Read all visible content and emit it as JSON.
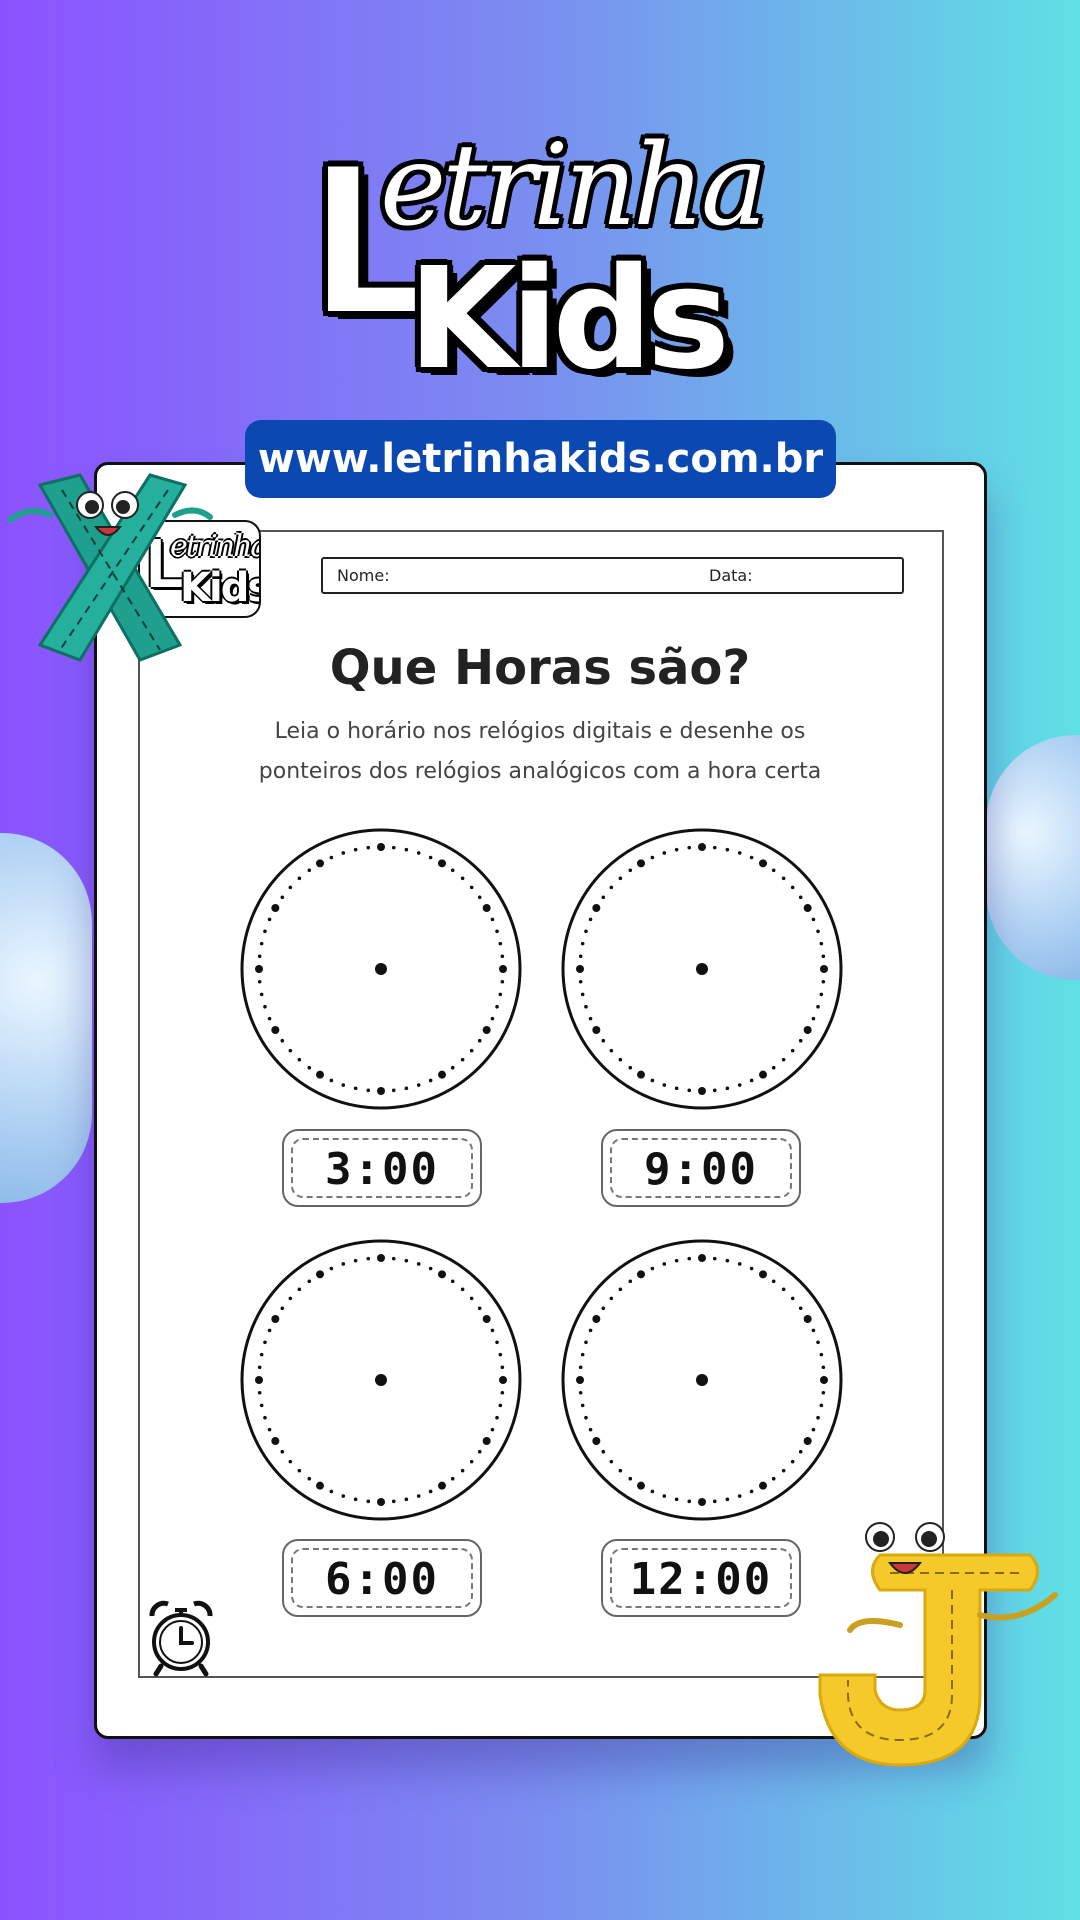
{
  "brand": {
    "logo_line1": "Letrinha",
    "logo_line2": "Kids",
    "url": "www.letrinhakids.com.br"
  },
  "worksheet": {
    "name_label": "Nome:",
    "date_label": "Data:",
    "title": "Que Horas são?",
    "instructions": [
      "Leia o horário nos relógios digitais e desenhe os",
      "ponteiros dos relógios analógicos com a hora certa"
    ],
    "clocks": [
      {
        "time": "3:00"
      },
      {
        "time": "9:00"
      },
      {
        "time": "6:00"
      },
      {
        "time": "12:00"
      }
    ]
  },
  "icons": {
    "corner": "alarm-clock-icon",
    "mascot_left": "letter-x-mascot",
    "mascot_right": "letter-j-mascot"
  },
  "colors": {
    "bg_left": "#8b52ff",
    "bg_right": "#5fe0e4",
    "url_pill": "#0b48b2",
    "mascot_x": "#1fa08f",
    "mascot_j": "#f5c92a"
  }
}
